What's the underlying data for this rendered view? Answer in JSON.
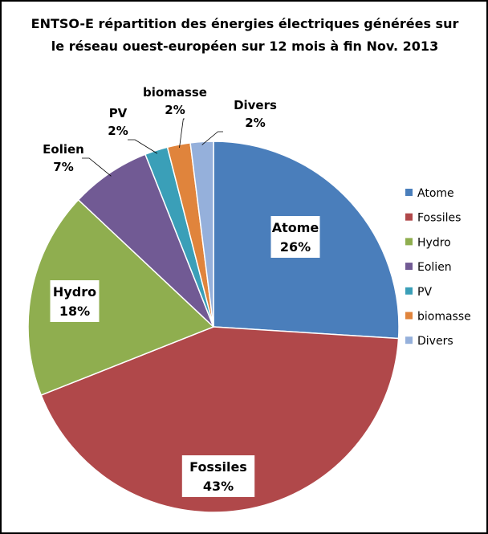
{
  "chart_data": {
    "type": "pie",
    "title_line1": "ENTSO-E répartition des énergies électriques générées  sur",
    "title_line2": "le réseau ouest-européen  sur 12 mois à fin Nov. 2013",
    "slices": [
      {
        "name": "Atome",
        "value": 26,
        "label": "26%",
        "color": "#4a7ebb"
      },
      {
        "name": "Fossiles",
        "value": 43,
        "label": "43%",
        "color": "#b0484a"
      },
      {
        "name": "Hydro",
        "value": 18,
        "label": "18%",
        "color": "#8fae4f"
      },
      {
        "name": "Eolien",
        "value": 7,
        "label": "7%",
        "color": "#715a94"
      },
      {
        "name": "PV",
        "value": 2,
        "label": "2%",
        "color": "#3a9fb8"
      },
      {
        "name": "biomasse",
        "value": 2,
        "label": "2%",
        "color": "#e0843c"
      },
      {
        "name": "Divers",
        "value": 2,
        "label": "2%",
        "color": "#95b0db"
      }
    ],
    "legend": [
      "Atome",
      "Fossiles",
      "Hydro",
      "Eolien",
      "PV",
      "biomasse",
      "Divers"
    ],
    "legend_position": "right"
  }
}
